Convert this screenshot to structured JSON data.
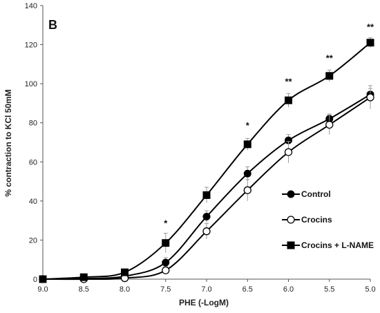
{
  "chart_data": {
    "type": "line",
    "panel_label": "B",
    "xlabel": "PHE (-LogM)",
    "ylabel": "% contraction to KCl 50mM",
    "x_reversed": true,
    "xlim": [
      9.0,
      5.0
    ],
    "ylim": [
      0,
      140
    ],
    "x_ticks": [
      "9.0",
      "8.5",
      "8.0",
      "7.5",
      "7.0",
      "6.5",
      "6.0",
      "5.5",
      "5.0"
    ],
    "y_ticks": [
      "0",
      "20",
      "40",
      "60",
      "80",
      "100",
      "120",
      "140"
    ],
    "grid": false,
    "legend_position": "lower-right",
    "series": [
      {
        "name": "Control",
        "marker": "filled-circle",
        "color": "#000000",
        "x": [
          9.0,
          8.5,
          8.0,
          7.5,
          7.0,
          6.5,
          6.0,
          5.5,
          5.0
        ],
        "y": [
          0,
          0.3,
          1.5,
          8.5,
          32,
          54,
          71,
          82,
          94.5
        ],
        "err": [
          0,
          0.3,
          0.8,
          2.5,
          3.0,
          3.5,
          3.0,
          2.5,
          3.0
        ]
      },
      {
        "name": "Crocins",
        "marker": "open-circle",
        "color": "#000000",
        "x": [
          9.0,
          8.5,
          8.0,
          7.5,
          7.0,
          6.5,
          6.0,
          5.5,
          5.0
        ],
        "y": [
          0,
          0,
          0.5,
          4.5,
          24.5,
          45.5,
          65,
          79,
          93
        ],
        "err": [
          0,
          0.2,
          0.5,
          2.0,
          4.0,
          5.5,
          5.5,
          5.0,
          6.0
        ]
      },
      {
        "name": "Crocins + L-NAME",
        "marker": "filled-square",
        "color": "#000000",
        "x": [
          9.0,
          8.5,
          8.0,
          7.5,
          7.0,
          6.5,
          6.0,
          5.5,
          5.0
        ],
        "y": [
          0,
          1.0,
          3.5,
          18.5,
          43,
          69,
          91.5,
          104,
          121
        ],
        "err": [
          0,
          0.5,
          1.0,
          5.0,
          4.0,
          3.0,
          3.5,
          3.0,
          2.5
        ]
      }
    ],
    "annotations": [
      {
        "x": 7.5,
        "y": 27,
        "text": "*"
      },
      {
        "x": 6.5,
        "y": 77,
        "text": "*"
      },
      {
        "x": 6.0,
        "y": 99.5,
        "text": "**"
      },
      {
        "x": 5.5,
        "y": 111.5,
        "text": "**"
      },
      {
        "x": 5.0,
        "y": 127.5,
        "text": "**"
      }
    ]
  }
}
